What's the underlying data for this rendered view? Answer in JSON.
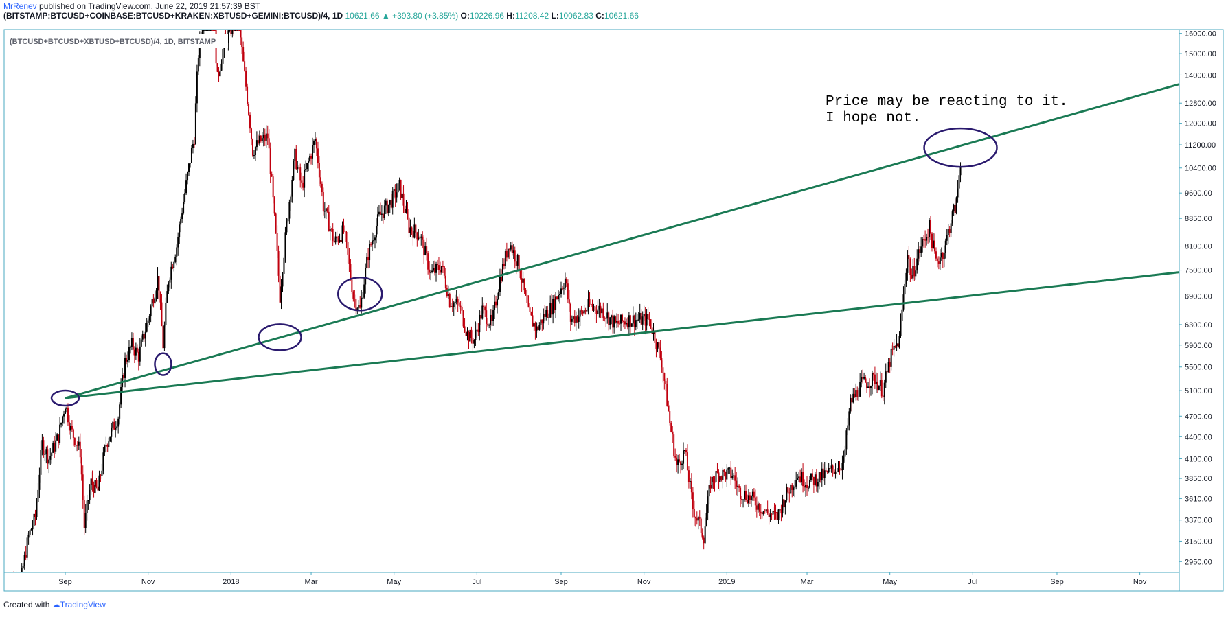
{
  "header": {
    "author": "MrRenev",
    "published": "published on TradingView.com, June 22, 2019 21:57:39 BST",
    "symbol": "(BITSTAMP:BTCUSD+COINBASE:BTCUSD+KRAKEN:XBTUSD+GEMINI:BTCUSD)/4, 1D",
    "last": "10621.66",
    "change": "+393.80 (+3.85%)",
    "o_label": "O:",
    "o": "10226.96",
    "h_label": "H:",
    "h": "11208.42",
    "l_label": "L:",
    "l": "10062.83",
    "c_label": "C:",
    "c": "10621.66"
  },
  "footer": {
    "created_with": "Created with",
    "brand": "TradingView"
  },
  "colors": {
    "up": "#000000",
    "down": "#c0000e",
    "trendline": "#1a7a54",
    "annotation": "#2a1a6e",
    "axis": "#4aa9c2"
  },
  "chart_data": {
    "type": "candlestick",
    "symbol_label": "(BTCUSD+BTCUSD+XBTUSD+BTCUSD)/4, 1D, BITSTAMP",
    "xlabel": "",
    "ylabel": "",
    "ylim": [
      2850,
      16200
    ],
    "y_scale": "log",
    "x_start": "2017-07-18",
    "x_end": "2019-11-30",
    "x_ticks": [
      {
        "label": "Sep",
        "date": "2017-09-01"
      },
      {
        "label": "Nov",
        "date": "2017-11-01"
      },
      {
        "label": "2018",
        "date": "2018-01-01"
      },
      {
        "label": "Mar",
        "date": "2018-03-01"
      },
      {
        "label": "May",
        "date": "2018-05-01"
      },
      {
        "label": "Jul",
        "date": "2018-07-01"
      },
      {
        "label": "Sep",
        "date": "2018-09-01"
      },
      {
        "label": "Nov",
        "date": "2018-11-01"
      },
      {
        "label": "2019",
        "date": "2019-01-01"
      },
      {
        "label": "Mar",
        "date": "2019-03-01"
      },
      {
        "label": "May",
        "date": "2019-05-01"
      },
      {
        "label": "Jul",
        "date": "2019-07-01"
      },
      {
        "label": "Sep",
        "date": "2019-09-01"
      },
      {
        "label": "Nov",
        "date": "2019-11-01"
      }
    ],
    "y_ticks": [
      "2950.00",
      "3150.00",
      "3370.00",
      "3610.00",
      "3850.00",
      "4100.00",
      "4400.00",
      "4700.00",
      "5100.00",
      "5500.00",
      "5900.00",
      "6300.00",
      "6900.00",
      "7500.00",
      "8100.00",
      "8850.00",
      "9600.00",
      "10400.00",
      "11200.00",
      "12000.00",
      "12800.00",
      "14000.00",
      "15000.00",
      "16000.00"
    ],
    "price_path": [
      [
        "2017-07-20",
        2800
      ],
      [
        "2017-07-30",
        2750
      ],
      [
        "2017-08-05",
        3200
      ],
      [
        "2017-08-10",
        3400
      ],
      [
        "2017-08-15",
        4300
      ],
      [
        "2017-08-20",
        4100
      ],
      [
        "2017-08-27",
        4400
      ],
      [
        "2017-09-01",
        4900
      ],
      [
        "2017-09-05",
        4500
      ],
      [
        "2017-09-12",
        4200
      ],
      [
        "2017-09-15",
        3300
      ],
      [
        "2017-09-20",
        3800
      ],
      [
        "2017-09-25",
        3700
      ],
      [
        "2017-10-01",
        4300
      ],
      [
        "2017-10-10",
        4700
      ],
      [
        "2017-10-15",
        5600
      ],
      [
        "2017-10-20",
        5900
      ],
      [
        "2017-10-25",
        5700
      ],
      [
        "2017-11-01",
        6400
      ],
      [
        "2017-11-08",
        7300
      ],
      [
        "2017-11-12",
        5900
      ],
      [
        "2017-11-16",
        7300
      ],
      [
        "2017-11-22",
        8100
      ],
      [
        "2017-11-28",
        9600
      ],
      [
        "2017-12-05",
        11500
      ],
      [
        "2017-12-08",
        15000
      ],
      [
        "2017-12-17",
        19300
      ],
      [
        "2017-12-22",
        13800
      ],
      [
        "2017-12-27",
        15500
      ],
      [
        "2018-01-06",
        17000
      ],
      [
        "2018-01-10",
        14500
      ],
      [
        "2018-01-17",
        11000
      ],
      [
        "2018-01-22",
        11300
      ],
      [
        "2018-01-28",
        11500
      ],
      [
        "2018-02-02",
        8800
      ],
      [
        "2018-02-06",
        6900
      ],
      [
        "2018-02-10",
        8300
      ],
      [
        "2018-02-17",
        10800
      ],
      [
        "2018-02-22",
        9800
      ],
      [
        "2018-03-04",
        11400
      ],
      [
        "2018-03-10",
        9200
      ],
      [
        "2018-03-18",
        8200
      ],
      [
        "2018-03-25",
        8500
      ],
      [
        "2018-04-01",
        6900
      ],
      [
        "2018-04-06",
        6600
      ],
      [
        "2018-04-12",
        7900
      ],
      [
        "2018-04-20",
        8900
      ],
      [
        "2018-04-28",
        9300
      ],
      [
        "2018-05-05",
        9800
      ],
      [
        "2018-05-12",
        8600
      ],
      [
        "2018-05-20",
        8400
      ],
      [
        "2018-05-28",
        7400
      ],
      [
        "2018-06-05",
        7600
      ],
      [
        "2018-06-11",
        6800
      ],
      [
        "2018-06-18",
        6700
      ],
      [
        "2018-06-24",
        6100
      ],
      [
        "2018-06-29",
        6000
      ],
      [
        "2018-07-05",
        6600
      ],
      [
        "2018-07-12",
        6300
      ],
      [
        "2018-07-18",
        7300
      ],
      [
        "2018-07-25",
        8200
      ],
      [
        "2018-08-01",
        7600
      ],
      [
        "2018-08-08",
        6500
      ],
      [
        "2018-08-14",
        6200
      ],
      [
        "2018-08-20",
        6500
      ],
      [
        "2018-08-26",
        6700
      ],
      [
        "2018-09-04",
        7300
      ],
      [
        "2018-09-08",
        6400
      ],
      [
        "2018-09-15",
        6500
      ],
      [
        "2018-09-22",
        6700
      ],
      [
        "2018-10-01",
        6600
      ],
      [
        "2018-10-11",
        6300
      ],
      [
        "2018-10-20",
        6400
      ],
      [
        "2018-11-05",
        6400
      ],
      [
        "2018-11-14",
        5600
      ],
      [
        "2018-11-20",
        4600
      ],
      [
        "2018-11-25",
        4000
      ],
      [
        "2018-12-01",
        4200
      ],
      [
        "2018-12-07",
        3500
      ],
      [
        "2018-12-15",
        3200
      ],
      [
        "2018-12-20",
        3800
      ],
      [
        "2018-12-25",
        3900
      ],
      [
        "2019-01-05",
        3900
      ],
      [
        "2019-01-10",
        3700
      ],
      [
        "2019-01-20",
        3600
      ],
      [
        "2019-01-30",
        3450
      ],
      [
        "2019-02-07",
        3400
      ],
      [
        "2019-02-12",
        3600
      ],
      [
        "2019-02-22",
        3900
      ],
      [
        "2019-03-01",
        3800
      ],
      [
        "2019-03-15",
        3900
      ],
      [
        "2019-03-28",
        4050
      ],
      [
        "2019-04-02",
        4900
      ],
      [
        "2019-04-10",
        5200
      ],
      [
        "2019-04-20",
        5300
      ],
      [
        "2019-04-26",
        5100
      ],
      [
        "2019-05-02",
        5700
      ],
      [
        "2019-05-08",
        6000
      ],
      [
        "2019-05-11",
        6900
      ],
      [
        "2019-05-14",
        7900
      ],
      [
        "2019-05-17",
        7300
      ],
      [
        "2019-05-22",
        7900
      ],
      [
        "2019-05-30",
        8600
      ],
      [
        "2019-06-04",
        7700
      ],
      [
        "2019-06-10",
        8000
      ],
      [
        "2019-06-15",
        8800
      ],
      [
        "2019-06-19",
        9300
      ],
      [
        "2019-06-22",
        10621.66
      ]
    ],
    "trendlines": [
      {
        "from": [
          "2017-09-01",
          4980
        ],
        "to": [
          "2019-11-30",
          13600
        ]
      },
      {
        "from": [
          "2017-09-01",
          4980
        ],
        "to": [
          "2019-11-30",
          7450
        ]
      }
    ],
    "annotation_text": [
      "Price may be reacting to it.",
      "I hope not."
    ],
    "circles": [
      {
        "date": "2017-09-01",
        "price": 4980
      },
      {
        "date": "2017-11-12",
        "price": 5550
      },
      {
        "date": "2018-02-06",
        "price": 6050
      },
      {
        "date": "2018-04-06",
        "price": 6950
      },
      {
        "date": "2019-06-22",
        "price": 11100
      }
    ]
  }
}
